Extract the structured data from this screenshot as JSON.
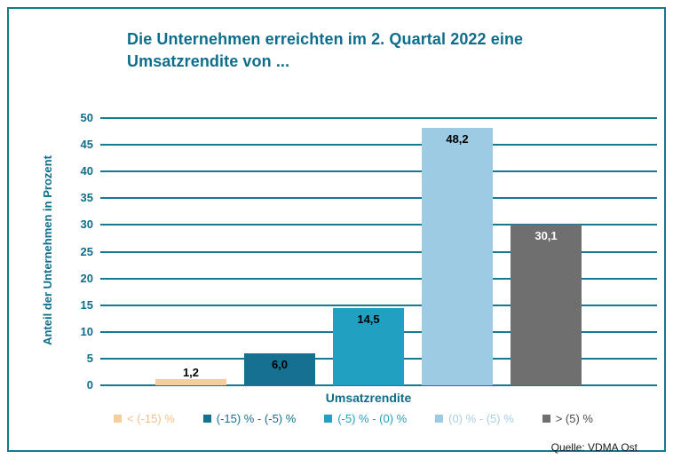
{
  "header": {
    "title_line1": "Die Unternehmen erreichten im 2. Quartal 2022 eine",
    "title_line2": "Umsatzrendite von ..."
  },
  "source": "Quelle: VDMA Ost",
  "accent_color": "#0D6E8B",
  "gridline_color": "#15798F",
  "border_color": "#15798F",
  "chart_data": {
    "type": "bar",
    "title": "Die Unternehmen erreichten im 2. Quartal 2022 eine Umsatzrendite von ...",
    "categories": [
      "< (-15) %",
      "(-15) % - (-5) %",
      "(-5) % - (0) %",
      "(0) % - (5) %",
      "> (5) %"
    ],
    "values": [
      1.2,
      6.0,
      14.5,
      48.2,
      30.1
    ],
    "value_labels": [
      "1,2",
      "6,0",
      "14,5",
      "48,2",
      "30,1"
    ],
    "xlabel": "Umsatzrendite",
    "ylabel": "Anteil der Unternehmen in Prozent",
    "ylim": [
      0,
      50
    ],
    "ytick_step": 5,
    "yticks": [
      0,
      5,
      10,
      15,
      20,
      25,
      30,
      35,
      40,
      45,
      50
    ],
    "grid": true,
    "legend_position": "bottom",
    "colors": [
      "#F6CD9F",
      "#15718F",
      "#22A0C2",
      "#9DCBE3",
      "#6F6F6F"
    ],
    "bar_label_colors": [
      "#000000",
      "#000000",
      "#000000",
      "#000000",
      "#FFFFFF"
    ],
    "legend_text_colors": [
      "#F0C08A",
      "#15718F",
      "#22A0C2",
      "#A8CFE5",
      "#4D4D4D"
    ]
  }
}
